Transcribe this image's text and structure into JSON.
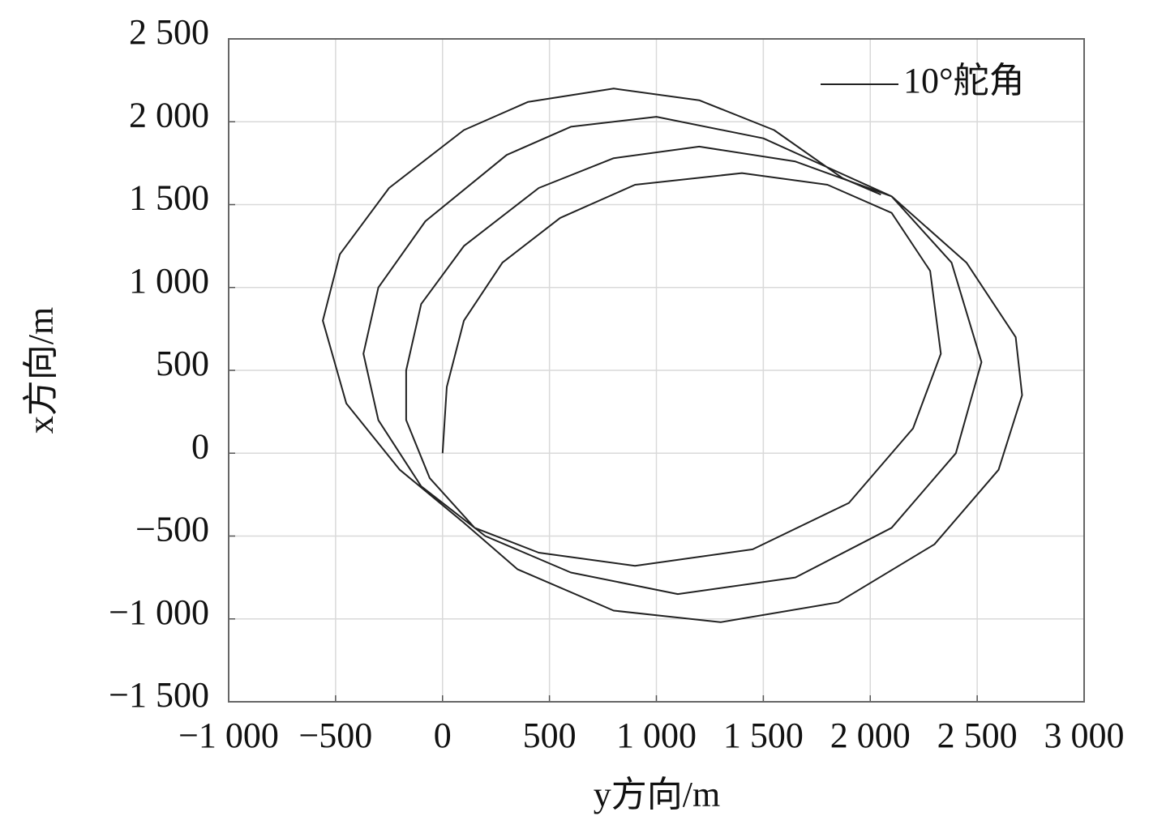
{
  "chart_data": {
    "type": "line",
    "x_label": "y方向/m",
    "y_label": "x方向/m",
    "x": [
      0,
      20,
      100,
      280,
      550,
      900,
      1400,
      1800,
      2100,
      2280,
      2330,
      2200,
      1900,
      1450,
      900,
      450,
      150,
      -60,
      -170,
      -170,
      -100,
      100,
      450,
      800,
      1200,
      1650,
      2100,
      2380,
      2520,
      2400,
      2100,
      1650,
      1100,
      600,
      200,
      -100,
      -300,
      -370,
      -300,
      -80,
      300,
      600,
      1000,
      1500,
      2100,
      2450,
      2680,
      2710,
      2600,
      2300,
      1850,
      1300,
      800,
      350,
      100,
      -200,
      -450,
      -560,
      -480,
      -250,
      100,
      400,
      800,
      1200,
      1550,
      1870,
      2050
    ],
    "series": [
      {
        "name": "10°舵角",
        "color": "#222222",
        "values": [
          0,
          400,
          800,
          1150,
          1420,
          1620,
          1690,
          1620,
          1450,
          1100,
          600,
          150,
          -300,
          -580,
          -680,
          -600,
          -450,
          -150,
          200,
          500,
          900,
          1250,
          1600,
          1780,
          1850,
          1760,
          1550,
          1150,
          550,
          0,
          -450,
          -750,
          -850,
          -720,
          -500,
          -200,
          200,
          600,
          1000,
          1400,
          1800,
          1970,
          2030,
          1900,
          1550,
          1150,
          700,
          350,
          -100,
          -550,
          -900,
          -1020,
          -950,
          -700,
          -420,
          -100,
          300,
          800,
          1200,
          1600,
          1950,
          2120,
          2200,
          2130,
          1950,
          1660,
          1560
        ]
      }
    ],
    "xlim": [
      -1000,
      3000
    ],
    "ylim": [
      -1500,
      2500
    ],
    "xticks": [
      {
        "value": -1000,
        "label": "−1 000"
      },
      {
        "value": -500,
        "label": "−500"
      },
      0,
      500,
      {
        "value": 1000,
        "label": "1 000"
      },
      {
        "value": 1500,
        "label": "1 500"
      },
      {
        "value": 2000,
        "label": "2 000"
      },
      {
        "value": 2500,
        "label": "2 500"
      },
      {
        "value": 3000,
        "label": "3 000"
      }
    ],
    "yticks": [
      {
        "value": -1500,
        "label": "−1 500"
      },
      {
        "value": -1000,
        "label": "−1 000"
      },
      {
        "value": -500,
        "label": "−500"
      },
      0,
      500,
      {
        "value": 1000,
        "label": "1 000"
      },
      {
        "value": 1500,
        "label": "1 500"
      },
      {
        "value": 2000,
        "label": "2 000"
      },
      {
        "value": 2500,
        "label": "2 500"
      }
    ],
    "grid": true,
    "legend": "upper right"
  }
}
